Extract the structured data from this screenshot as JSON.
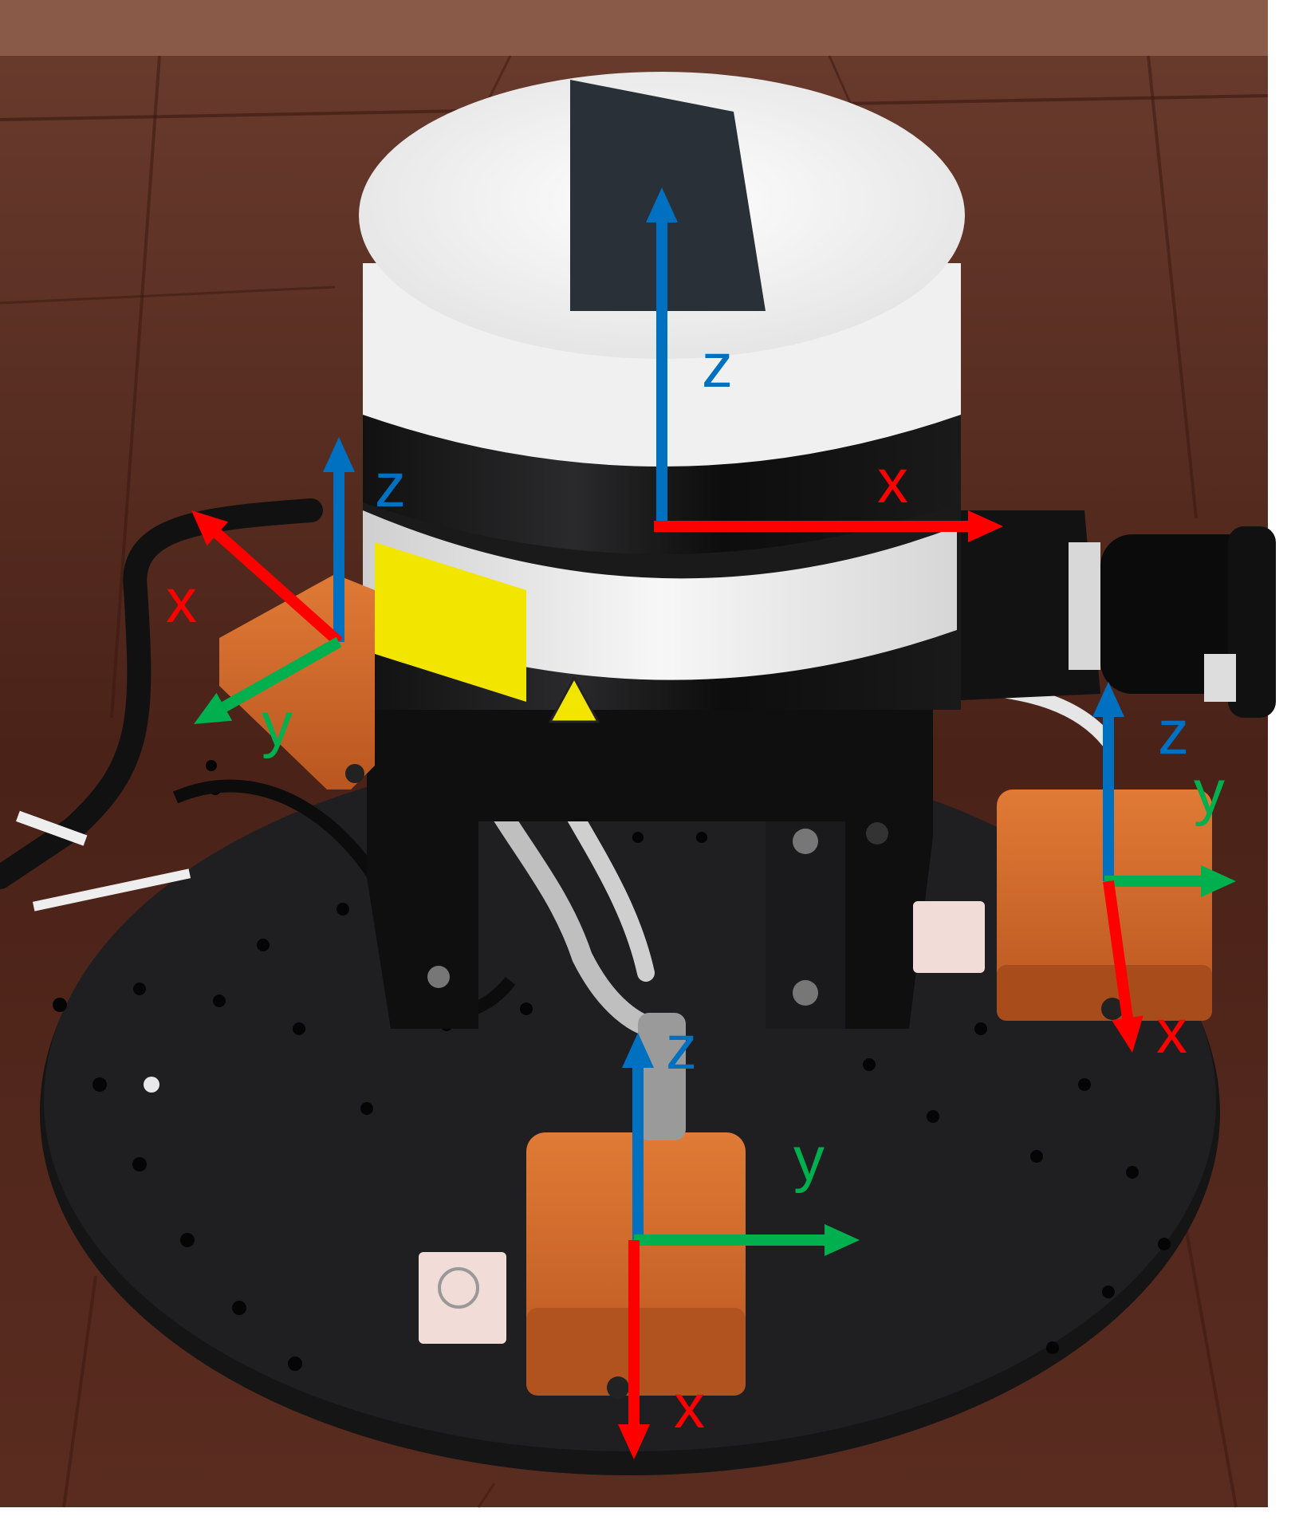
{
  "colors": {
    "x_axis": "#ff0000",
    "y_axis": "#00b04f",
    "z_axis": "#0070c0",
    "floor": "#4a2218",
    "plate": "#1f1f21",
    "sensor_housing": "#d9702e",
    "lidar_cap": "#f3f3f3"
  },
  "frames": [
    {
      "id": "lidar",
      "labels": {
        "x": "x",
        "z": "z"
      }
    },
    {
      "id": "imu-left",
      "labels": {
        "x": "x",
        "y": "y",
        "z": "z"
      }
    },
    {
      "id": "imu-right",
      "labels": {
        "x": "x",
        "y": "y",
        "z": "z"
      }
    },
    {
      "id": "imu-front",
      "labels": {
        "x": "x",
        "y": "y",
        "z": "z"
      }
    }
  ]
}
